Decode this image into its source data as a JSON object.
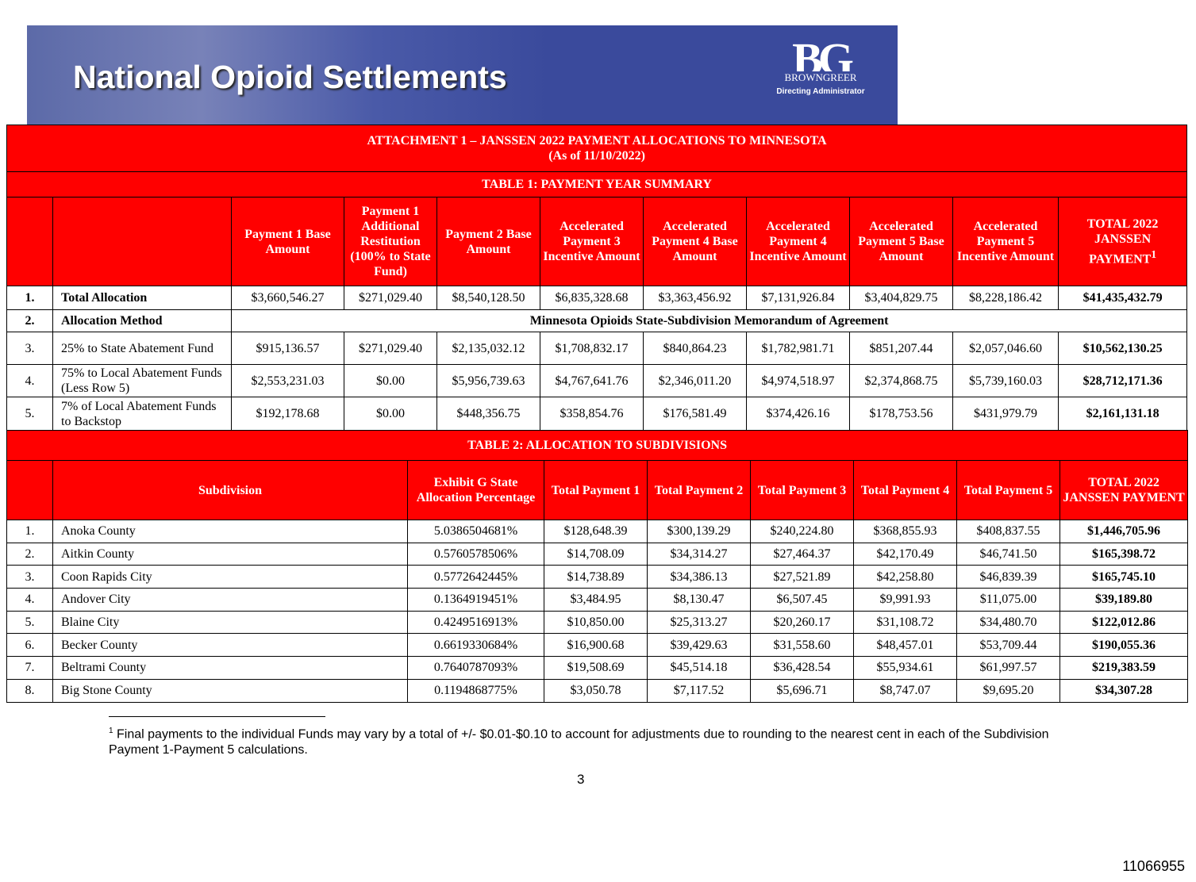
{
  "banner": {
    "title": "National Opioid Settlements",
    "logo": "BG",
    "logo_name": "BROWNGREER",
    "logo_sub": "Directing Administrator"
  },
  "attachment": {
    "title": "ATTACHMENT 1 – JANSSEN 2022 PAYMENT ALLOCATIONS TO MINNESOTA",
    "date": "(As of 11/10/2022)"
  },
  "table1": {
    "title": "TABLE 1:  PAYMENT YEAR SUMMARY",
    "headers": [
      "Payment 1 Base Amount",
      "Payment 1 Additional Restitution (100% to State Fund)",
      "Payment 2 Base Amount",
      "Accelerated Payment 3 Incentive Amount",
      "Accelerated Payment 4 Base Amount",
      "Accelerated Payment 4 Incentive Amount",
      "Accelerated Payment 5 Base Amount",
      "Accelerated Payment 5 Incentive Amount",
      "TOTAL 2022 JANSSEN PAYMENT"
    ],
    "header_note": "1",
    "rows": [
      {
        "num": "1.",
        "label": "Total Allocation",
        "cells": [
          "$3,660,546.27",
          "$271,029.40",
          "$8,540,128.50",
          "$6,835,328.68",
          "$3,363,456.92",
          "$7,131,926.84",
          "$3,404,829.75",
          "$8,228,186.42",
          "$41,435,432.79"
        ]
      },
      {
        "num": "2.",
        "label": "Allocation Method",
        "merged": "Minnesota Opioids State-Subdivision Memorandum of Agreement"
      },
      {
        "num": "3.",
        "label": "25% to State Abatement Fund",
        "cells": [
          "$915,136.57",
          "$271,029.40",
          "$2,135,032.12",
          "$1,708,832.17",
          "$840,864.23",
          "$1,782,981.71",
          "$851,207.44",
          "$2,057,046.60",
          "$10,562,130.25"
        ]
      },
      {
        "num": "4.",
        "label": "75% to Local Abatement Funds (Less Row 5)",
        "cells": [
          "$2,553,231.03",
          "$0.00",
          "$5,956,739.63",
          "$4,767,641.76",
          "$2,346,011.20",
          "$4,974,518.97",
          "$2,374,868.75",
          "$5,739,160.03",
          "$28,712,171.36"
        ]
      },
      {
        "num": "5.",
        "label": "7% of Local Abatement Funds to Backstop",
        "cells": [
          "$192,178.68",
          "$0.00",
          "$448,356.75",
          "$358,854.76",
          "$176,581.49",
          "$374,426.16",
          "$178,753.56",
          "$431,979.79",
          "$2,161,131.18"
        ]
      }
    ]
  },
  "table2": {
    "title": "TABLE 2: ALLOCATION TO SUBDIVISIONS",
    "headers": [
      "Subdivision",
      "Exhibit G State Allocation Percentage",
      "Total Payment 1",
      "Total Payment 2",
      "Total Payment 3",
      "Total Payment 4",
      "Total Payment 5",
      "TOTAL 2022 JANSSEN PAYMENT"
    ],
    "rows": [
      [
        "1.",
        "Anoka County",
        "5.0386504681%",
        "$128,648.39",
        "$300,139.29",
        "$240,224.80",
        "$368,855.93",
        "$408,837.55",
        "$1,446,705.96"
      ],
      [
        "2.",
        "Aitkin County",
        "0.5760578506%",
        "$14,708.09",
        "$34,314.27",
        "$27,464.37",
        "$42,170.49",
        "$46,741.50",
        "$165,398.72"
      ],
      [
        "3.",
        "Coon Rapids City",
        "0.5772642445%",
        "$14,738.89",
        "$34,386.13",
        "$27,521.89",
        "$42,258.80",
        "$46,839.39",
        "$165,745.10"
      ],
      [
        "4.",
        "Andover City",
        "0.1364919451%",
        "$3,484.95",
        "$8,130.47",
        "$6,507.45",
        "$9,991.93",
        "$11,075.00",
        "$39,189.80"
      ],
      [
        "5.",
        "Blaine City",
        "0.4249516913%",
        "$10,850.00",
        "$25,313.27",
        "$20,260.17",
        "$31,108.72",
        "$34,480.70",
        "$122,012.86"
      ],
      [
        "6.",
        "Becker County",
        "0.6619330684%",
        "$16,900.68",
        "$39,429.63",
        "$31,558.60",
        "$48,457.01",
        "$53,709.44",
        "$190,055.36"
      ],
      [
        "7.",
        "Beltrami County",
        "0.7640787093%",
        "$19,508.69",
        "$45,514.18",
        "$36,428.54",
        "$55,934.61",
        "$61,997.57",
        "$219,383.59"
      ],
      [
        "8.",
        "Big Stone County",
        "0.1194868775%",
        "$3,050.78",
        "$7,117.52",
        "$5,696.71",
        "$8,747.07",
        "$9,695.20",
        "$34,307.28"
      ]
    ]
  },
  "footnote": {
    "mark": "1",
    "text": "Final payments to the individual Funds may vary by a total of +/- $0.01-$0.10 to account for adjustments due to rounding to the nearest cent in each of the Subdivision Payment 1-Payment 5 calculations."
  },
  "page_number": "3",
  "doc_id": "11066955"
}
